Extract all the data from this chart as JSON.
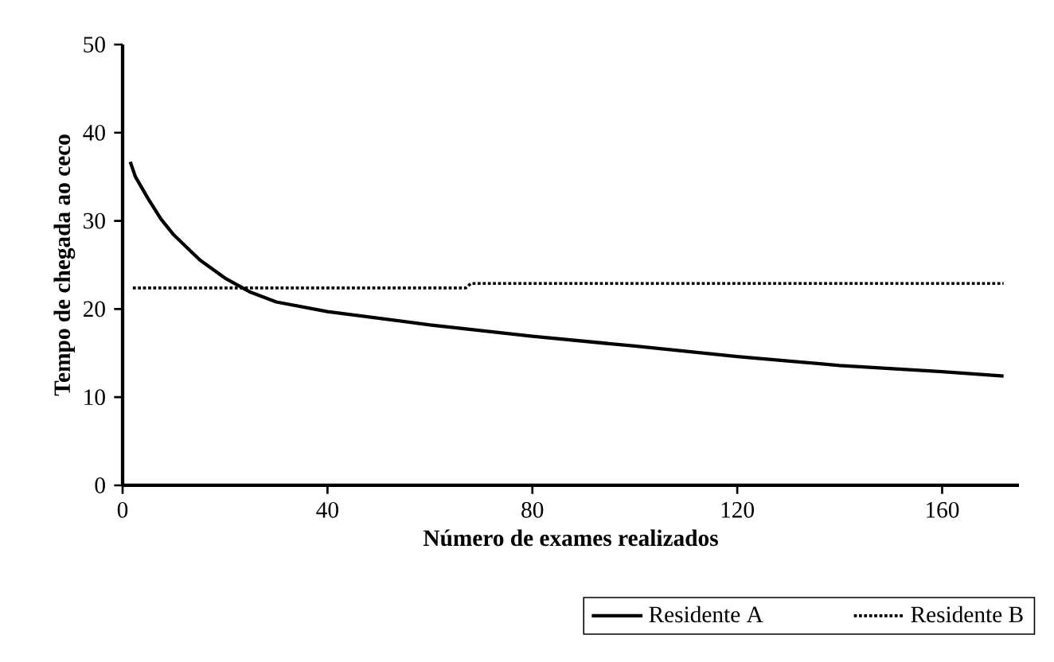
{
  "chart_data": {
    "type": "line",
    "xlabel": "Número de exames realizados",
    "ylabel": "Tempo de chegada ao ceco",
    "xlim": [
      0,
      175
    ],
    "ylim": [
      0,
      50
    ],
    "xticks": [
      0,
      40,
      80,
      120,
      160
    ],
    "yticks": [
      0,
      10,
      20,
      30,
      40,
      50
    ],
    "grid": false,
    "legend": "bottom right",
    "marker": "none",
    "series": [
      {
        "name": "Residente A",
        "color": "#000000",
        "line_style": "solid",
        "x": [
          1.5,
          2.5,
          5,
          7.5,
          10,
          15,
          20,
          25,
          30,
          40,
          60,
          80,
          100,
          120,
          140,
          160,
          172
        ],
        "values": [
          36.7,
          35.0,
          32.5,
          30.2,
          28.4,
          25.6,
          23.5,
          21.9,
          20.8,
          19.7,
          18.2,
          16.9,
          15.8,
          14.6,
          13.6,
          12.9,
          12.4
        ]
      },
      {
        "name": "Residente B",
        "color": "#000000",
        "line_style": "dotted",
        "x": [
          2,
          67,
          68,
          172
        ],
        "values": [
          22.4,
          22.4,
          22.9,
          22.9
        ]
      }
    ]
  }
}
